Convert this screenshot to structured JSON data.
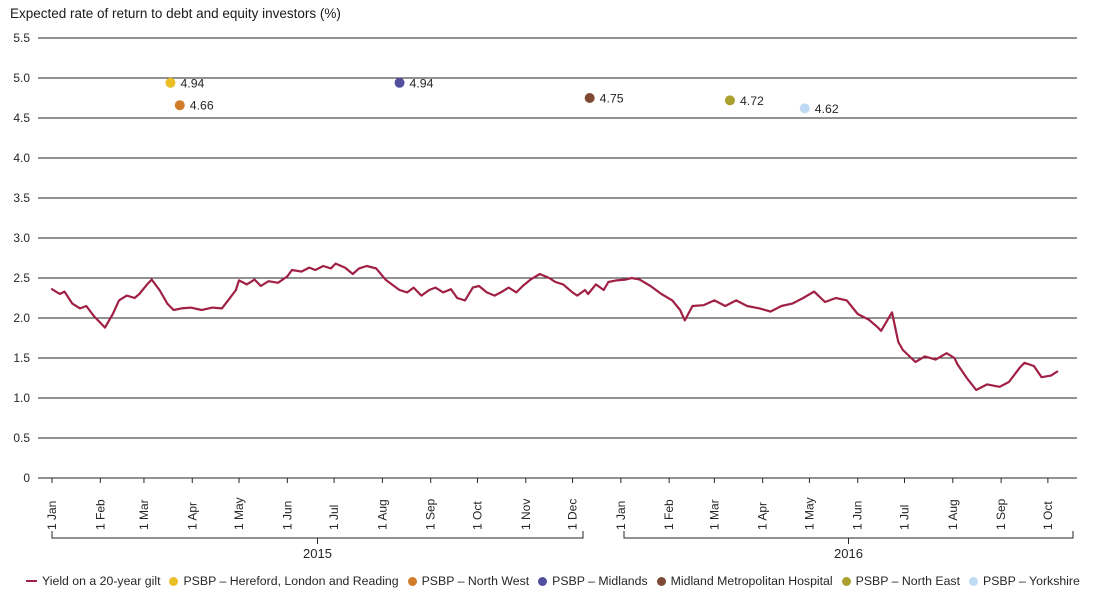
{
  "chart_data": {
    "type": "line+scatter",
    "title": "Expected rate of return to debt and equity investors (%)",
    "xlabel": "",
    "ylabel": "",
    "ylim": [
      0,
      5.5
    ],
    "grid": "horizontal",
    "legend_position": "bottom",
    "yticks": [
      {
        "value": 5.5,
        "label": "5.5"
      },
      {
        "value": 5.0,
        "label": "5.0"
      },
      {
        "value": 4.5,
        "label": "4.5"
      },
      {
        "value": 4.0,
        "label": "4.0"
      },
      {
        "value": 3.5,
        "label": "3.5"
      },
      {
        "value": 3.0,
        "label": "3.0"
      },
      {
        "value": 2.5,
        "label": "2.5"
      },
      {
        "value": 2.0,
        "label": "2.0"
      },
      {
        "value": 1.5,
        "label": "1.5"
      },
      {
        "value": 1.0,
        "label": "1.0"
      },
      {
        "value": 0.5,
        "label": "0.5"
      },
      {
        "value": 0.0,
        "label": "0"
      }
    ],
    "xticks": [
      {
        "date": "2015-01-01",
        "label": "1 Jan"
      },
      {
        "date": "2015-02-01",
        "label": "1 Feb"
      },
      {
        "date": "2015-03-01",
        "label": "1 Mar"
      },
      {
        "date": "2015-04-01",
        "label": "1 Apr"
      },
      {
        "date": "2015-05-01",
        "label": "1 May"
      },
      {
        "date": "2015-06-01",
        "label": "1 Jun"
      },
      {
        "date": "2015-07-01",
        "label": "1 Jul"
      },
      {
        "date": "2015-08-01",
        "label": "1 Aug"
      },
      {
        "date": "2015-09-01",
        "label": "1 Sep"
      },
      {
        "date": "2015-10-01",
        "label": "1 Oct"
      },
      {
        "date": "2015-11-01",
        "label": "1 Nov"
      },
      {
        "date": "2015-12-01",
        "label": "1 Dec"
      },
      {
        "date": "2016-01-01",
        "label": "1 Jan"
      },
      {
        "date": "2016-02-01",
        "label": "1 Feb"
      },
      {
        "date": "2016-03-01",
        "label": "1 Mar"
      },
      {
        "date": "2016-04-01",
        "label": "1 Apr"
      },
      {
        "date": "2016-05-01",
        "label": "1 May"
      },
      {
        "date": "2016-06-01",
        "label": "1 Jun"
      },
      {
        "date": "2016-07-01",
        "label": "1 Jul"
      },
      {
        "date": "2016-08-01",
        "label": "1 Aug"
      },
      {
        "date": "2016-09-01",
        "label": "1 Sep"
      },
      {
        "date": "2016-10-01",
        "label": "1 Oct"
      }
    ],
    "year_groups": [
      {
        "label": "2015"
      },
      {
        "label": "2016"
      }
    ],
    "line_series": {
      "name": "Yield on a 20-year gilt",
      "color": "#a02045",
      "points": [
        [
          "2015-01-01",
          2.36
        ],
        [
          "2015-01-06",
          2.3
        ],
        [
          "2015-01-09",
          2.33
        ],
        [
          "2015-01-14",
          2.18
        ],
        [
          "2015-01-19",
          2.12
        ],
        [
          "2015-01-23",
          2.15
        ],
        [
          "2015-01-28",
          2.02
        ],
        [
          "2015-02-02",
          1.92
        ],
        [
          "2015-02-04",
          1.88
        ],
        [
          "2015-02-09",
          2.05
        ],
        [
          "2015-02-13",
          2.22
        ],
        [
          "2015-02-18",
          2.28
        ],
        [
          "2015-02-23",
          2.25
        ],
        [
          "2015-02-26",
          2.3
        ],
        [
          "2015-03-03",
          2.42
        ],
        [
          "2015-03-06",
          2.48
        ],
        [
          "2015-03-11",
          2.35
        ],
        [
          "2015-03-16",
          2.18
        ],
        [
          "2015-03-20",
          2.1
        ],
        [
          "2015-03-25",
          2.12
        ],
        [
          "2015-03-31",
          2.13
        ],
        [
          "2015-04-07",
          2.1
        ],
        [
          "2015-04-14",
          2.13
        ],
        [
          "2015-04-20",
          2.12
        ],
        [
          "2015-04-24",
          2.22
        ],
        [
          "2015-04-29",
          2.35
        ],
        [
          "2015-05-01",
          2.47
        ],
        [
          "2015-05-06",
          2.42
        ],
        [
          "2015-05-11",
          2.48
        ],
        [
          "2015-05-15",
          2.4
        ],
        [
          "2015-05-20",
          2.46
        ],
        [
          "2015-05-26",
          2.44
        ],
        [
          "2015-06-01",
          2.52
        ],
        [
          "2015-06-04",
          2.6
        ],
        [
          "2015-06-10",
          2.58
        ],
        [
          "2015-06-15",
          2.63
        ],
        [
          "2015-06-19",
          2.6
        ],
        [
          "2015-06-24",
          2.65
        ],
        [
          "2015-06-29",
          2.62
        ],
        [
          "2015-07-02",
          2.68
        ],
        [
          "2015-07-08",
          2.63
        ],
        [
          "2015-07-13",
          2.55
        ],
        [
          "2015-07-17",
          2.62
        ],
        [
          "2015-07-22",
          2.65
        ],
        [
          "2015-07-28",
          2.62
        ],
        [
          "2015-08-03",
          2.48
        ],
        [
          "2015-08-07",
          2.42
        ],
        [
          "2015-08-12",
          2.35
        ],
        [
          "2015-08-17",
          2.32
        ],
        [
          "2015-08-21",
          2.38
        ],
        [
          "2015-08-26",
          2.28
        ],
        [
          "2015-08-31",
          2.35
        ],
        [
          "2015-09-04",
          2.38
        ],
        [
          "2015-09-09",
          2.32
        ],
        [
          "2015-09-14",
          2.36
        ],
        [
          "2015-09-18",
          2.25
        ],
        [
          "2015-09-23",
          2.22
        ],
        [
          "2015-09-28",
          2.38
        ],
        [
          "2015-10-02",
          2.4
        ],
        [
          "2015-10-07",
          2.32
        ],
        [
          "2015-10-12",
          2.28
        ],
        [
          "2015-10-16",
          2.32
        ],
        [
          "2015-10-21",
          2.38
        ],
        [
          "2015-10-26",
          2.32
        ],
        [
          "2015-10-30",
          2.4
        ],
        [
          "2015-11-04",
          2.48
        ],
        [
          "2015-11-10",
          2.55
        ],
        [
          "2015-11-16",
          2.5
        ],
        [
          "2015-11-20",
          2.45
        ],
        [
          "2015-11-25",
          2.42
        ],
        [
          "2015-12-01",
          2.32
        ],
        [
          "2015-12-04",
          2.28
        ],
        [
          "2015-12-09",
          2.35
        ],
        [
          "2015-12-11",
          2.3
        ],
        [
          "2015-12-16",
          2.42
        ],
        [
          "2015-12-21",
          2.35
        ],
        [
          "2015-12-24",
          2.45
        ],
        [
          "2015-12-29",
          2.47
        ],
        [
          "2016-01-04",
          2.48
        ],
        [
          "2016-01-08",
          2.5
        ],
        [
          "2016-01-13",
          2.48
        ],
        [
          "2016-01-20",
          2.4
        ],
        [
          "2016-01-27",
          2.3
        ],
        [
          "2016-02-03",
          2.22
        ],
        [
          "2016-02-08",
          2.1
        ],
        [
          "2016-02-11",
          1.97
        ],
        [
          "2016-02-16",
          2.15
        ],
        [
          "2016-02-23",
          2.16
        ],
        [
          "2016-03-01",
          2.22
        ],
        [
          "2016-03-08",
          2.15
        ],
        [
          "2016-03-15",
          2.22
        ],
        [
          "2016-03-22",
          2.15
        ],
        [
          "2016-03-30",
          2.12
        ],
        [
          "2016-04-06",
          2.08
        ],
        [
          "2016-04-13",
          2.15
        ],
        [
          "2016-04-20",
          2.18
        ],
        [
          "2016-04-27",
          2.25
        ],
        [
          "2016-05-04",
          2.33
        ],
        [
          "2016-05-11",
          2.2
        ],
        [
          "2016-05-18",
          2.25
        ],
        [
          "2016-05-25",
          2.22
        ],
        [
          "2016-06-01",
          2.05
        ],
        [
          "2016-06-08",
          1.98
        ],
        [
          "2016-06-14",
          1.88
        ],
        [
          "2016-06-16",
          1.84
        ],
        [
          "2016-06-23",
          2.07
        ],
        [
          "2016-06-27",
          1.7
        ],
        [
          "2016-06-30",
          1.6
        ],
        [
          "2016-07-08",
          1.45
        ],
        [
          "2016-07-14",
          1.52
        ],
        [
          "2016-07-21",
          1.48
        ],
        [
          "2016-07-28",
          1.56
        ],
        [
          "2016-08-02",
          1.5
        ],
        [
          "2016-08-04",
          1.42
        ],
        [
          "2016-08-10",
          1.25
        ],
        [
          "2016-08-16",
          1.1
        ],
        [
          "2016-08-23",
          1.17
        ],
        [
          "2016-08-31",
          1.14
        ],
        [
          "2016-09-06",
          1.2
        ],
        [
          "2016-09-13",
          1.38
        ],
        [
          "2016-09-16",
          1.44
        ],
        [
          "2016-09-22",
          1.4
        ],
        [
          "2016-09-27",
          1.26
        ],
        [
          "2016-10-03",
          1.28
        ],
        [
          "2016-10-07",
          1.33
        ]
      ]
    },
    "scatter_series": [
      {
        "name": "PSBP – Hereford, London and Reading",
        "color": "#e9bf25",
        "date": "2015-03-18",
        "value": 4.94,
        "label": "4.94"
      },
      {
        "name": "PSBP – North West",
        "color": "#d07c2a",
        "date": "2015-03-24",
        "value": 4.66,
        "label": "4.66"
      },
      {
        "name": "PSBP – Midlands",
        "color": "#514f9e",
        "date": "2015-08-12",
        "value": 4.94,
        "label": "4.94"
      },
      {
        "name": "Midland Metropolitan Hospital",
        "color": "#7e4a33",
        "date": "2015-12-12",
        "value": 4.75,
        "label": "4.75"
      },
      {
        "name": "PSBP – North East",
        "color": "#aba02f",
        "date": "2016-03-11",
        "value": 4.72,
        "label": "4.72"
      },
      {
        "name": "PSBP – Yorkshire",
        "color": "#bfdaf4",
        "date": "2016-04-28",
        "value": 4.62,
        "label": "4.62"
      }
    ],
    "legend_items": [
      {
        "label": "Yield on a 20-year gilt",
        "marker": "line",
        "color": "#a02045"
      },
      {
        "label": "PSBP – Hereford, London and Reading",
        "marker": "dot",
        "color": "#e9bf25"
      },
      {
        "label": "PSBP – North West",
        "marker": "dot",
        "color": "#d07c2a"
      },
      {
        "label": "PSBP – Midlands",
        "marker": "dot",
        "color": "#514f9e"
      },
      {
        "label": "Midland Metropolitan Hospital",
        "marker": "dot",
        "color": "#7e4a33"
      },
      {
        "label": "PSBP – North East",
        "marker": "dot",
        "color": "#aba02f"
      },
      {
        "label": "PSBP – Yorkshire",
        "marker": "dot",
        "color": "#bfdaf4"
      }
    ],
    "colors": {
      "grid": "#262626",
      "text": "#262626",
      "background": "#ffffff"
    }
  }
}
